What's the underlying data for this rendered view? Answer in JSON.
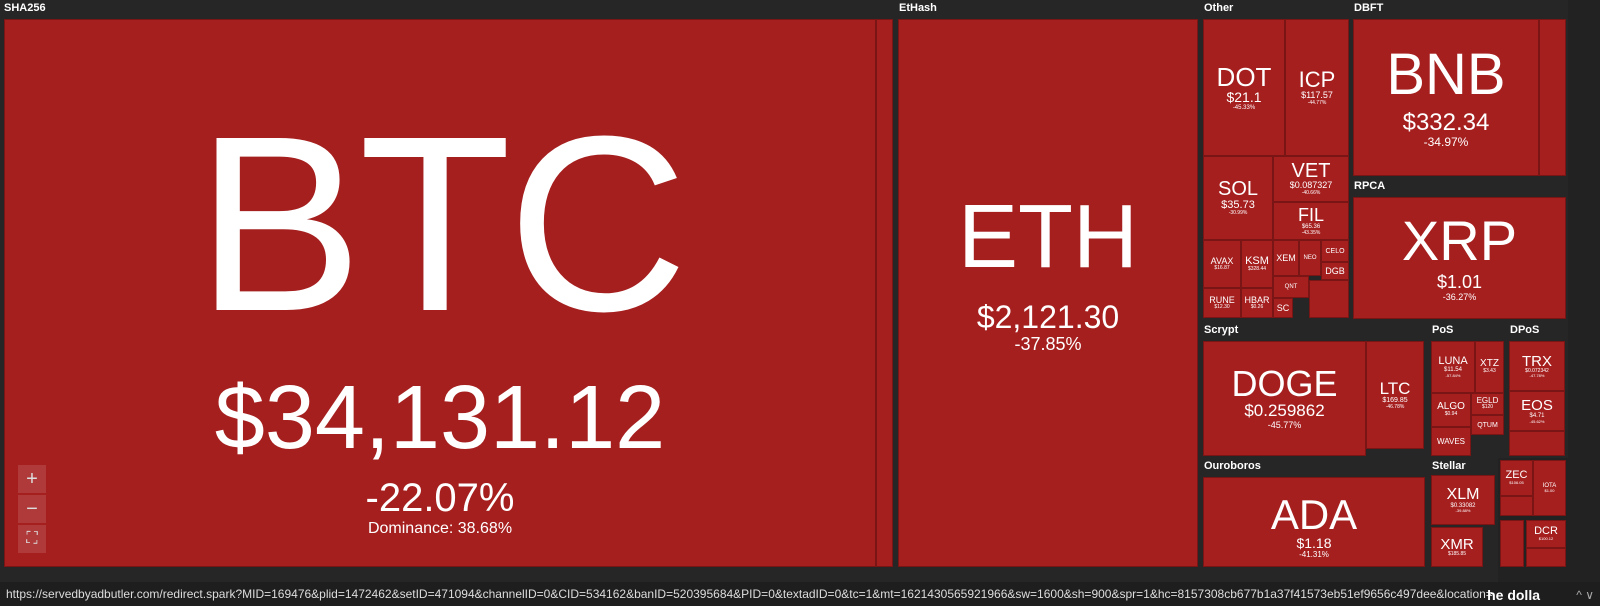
{
  "groups": {
    "sha256": "SHA256",
    "ethash": "EtHash",
    "other": "Other",
    "dbft": "DBFT",
    "rpca": "RPCA",
    "scrypt": "Scrypt",
    "pos": "PoS",
    "dpos": "DPoS",
    "ouroboros": "Ouroboros",
    "stellar": "Stellar"
  },
  "coins": {
    "btc": {
      "sym": "BTC",
      "price": "$34,131.12",
      "chg": "-22.07%",
      "dominance": "Dominance: 38.68%"
    },
    "eth": {
      "sym": "ETH",
      "price": "$2,121.30",
      "chg": "-37.85%"
    },
    "dot": {
      "sym": "DOT",
      "price": "$21.1",
      "chg": "-45.33%"
    },
    "icp": {
      "sym": "ICP",
      "price": "$117.57",
      "chg": "-44.77%"
    },
    "sol": {
      "sym": "SOL",
      "price": "$35.73",
      "chg": "-30.99%"
    },
    "vet": {
      "sym": "VET",
      "price": "$0.087327",
      "chg": "-40.66%"
    },
    "fil": {
      "sym": "FIL",
      "price": "$65.36",
      "chg": "-43.35%"
    },
    "avax": {
      "sym": "AVAX",
      "price": "$16.87"
    },
    "ksm": {
      "sym": "KSM",
      "price": "$328.44"
    },
    "xem": {
      "sym": "XEM"
    },
    "neo2": {
      "sym": "NEO"
    },
    "celo": {
      "sym": "CELO"
    },
    "qnt": {
      "sym": "QNT"
    },
    "dgb": {
      "sym": "DGB"
    },
    "rune": {
      "sym": "RUNE",
      "price": "$12.30"
    },
    "hbar": {
      "sym": "HBAR",
      "price": "$0.26"
    },
    "sc": {
      "sym": "SC"
    },
    "bnb": {
      "sym": "BNB",
      "price": "$332.34",
      "chg": "-34.97%"
    },
    "xrp": {
      "sym": "XRP",
      "price": "$1.01",
      "chg": "-36.27%"
    },
    "doge": {
      "sym": "DOGE",
      "price": "$0.259862",
      "chg": "-45.77%"
    },
    "ltc": {
      "sym": "LTC",
      "price": "$169.85",
      "chg": "-46.78%"
    },
    "luna": {
      "sym": "LUNA",
      "price": "$11.54",
      "chg": "-57.84%"
    },
    "xtz": {
      "sym": "XTZ",
      "price": "$3.43"
    },
    "algo": {
      "sym": "ALGO",
      "price": "$0.94"
    },
    "egld": {
      "sym": "EGLD",
      "price": "$120"
    },
    "qtum": {
      "sym": "QTUM"
    },
    "waves": {
      "sym": "WAVES"
    },
    "trx": {
      "sym": "TRX",
      "price": "$0.072342",
      "chg": "-47.78%"
    },
    "eos": {
      "sym": "EOS",
      "price": "$4.71",
      "chg": "-45.62%"
    },
    "ada": {
      "sym": "ADA",
      "price": "$1.18",
      "chg": "-41.31%"
    },
    "xlm": {
      "sym": "XLM",
      "price": "$0.33082",
      "chg": "-39.88%"
    },
    "xmr": {
      "sym": "XMR",
      "price": "$185.85"
    },
    "zec": {
      "sym": "ZEC",
      "price": "$106.05"
    },
    "iota": {
      "sym": "IOTA",
      "price": "$1.00"
    },
    "dcr": {
      "sym": "DCR",
      "price": "$100.12"
    }
  },
  "controls": {
    "zoom_in": "+",
    "zoom_out": "−",
    "fullscreen": "⛶"
  },
  "status": {
    "url": "https://servedbyadbutler.com/redirect.spark?MID=169476&plid=1472462&setID=471094&channelID=0&CID=534162&banID=520395684&PID=0&textadID=0&tc=1&mt=1621430565921966&sw=1600&sh=900&spr=1&hc=8157308cb677b1a37f41573eb51ef9656c497dee&location=",
    "tail": "he dolla",
    "arrows": "^ ∨"
  }
}
